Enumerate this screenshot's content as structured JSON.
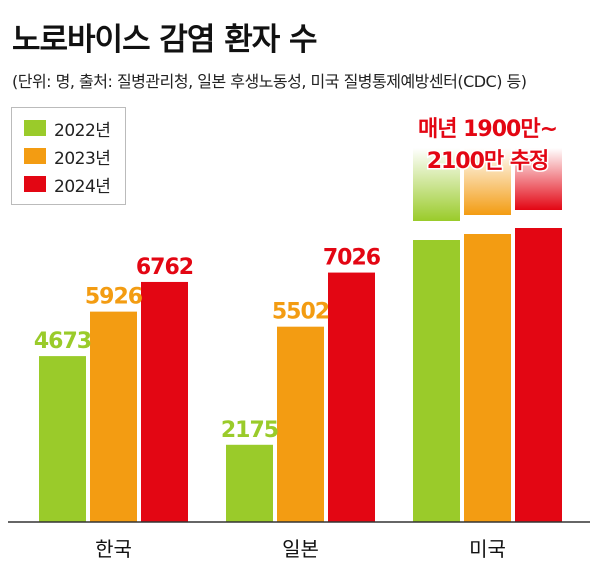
{
  "title": "노로바이스 감염 환자 수",
  "subtitle": "(단위: 명, 출처: 질병관리청, 일본 후생노동성, 미국 질병통제예방센터(CDC) 등)",
  "colors": {
    "2022년": "#9acb2a",
    "2023년": "#f39c12",
    "2024년": "#e30613"
  },
  "legend": [
    {
      "label": "2022년",
      "color": "#9acb2a"
    },
    {
      "label": "2023년",
      "color": "#f39c12"
    },
    {
      "label": "2024년",
      "color": "#e30613"
    }
  ],
  "chart_data": {
    "type": "bar",
    "title": "노로바이스 감염 환자 수",
    "subtitle": "(단위: 명, 출처: 질병관리청, 일본 후생노동성, 미국 질병통제예방센터(CDC) 등)",
    "categories": [
      "한국",
      "일본",
      "미국"
    ],
    "series": [
      {
        "name": "2022년",
        "values": [
          4673,
          2175,
          null
        ]
      },
      {
        "name": "2023년",
        "values": [
          5926,
          5502,
          null
        ]
      },
      {
        "name": "2024년",
        "values": [
          6762,
          7026,
          null
        ]
      }
    ],
    "value_labels": [
      [
        "4673",
        "5926",
        "6762"
      ],
      [
        "2175",
        "5502",
        "7026"
      ]
    ],
    "broken_category": "미국",
    "annotation": {
      "line1": "매년 1900만~",
      "line2": "2100만 추정"
    },
    "legend_position": "top-left",
    "grid": false,
    "ylim": [
      0,
      8000
    ]
  }
}
